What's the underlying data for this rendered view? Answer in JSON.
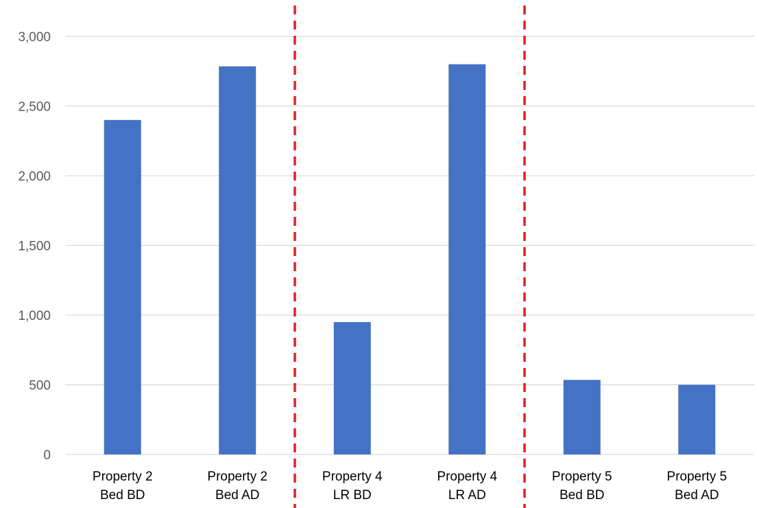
{
  "chart_data": {
    "type": "bar",
    "categories": [
      [
        "Property 2",
        "Bed BD"
      ],
      [
        "Property 2",
        "Bed AD"
      ],
      [
        "Property 4",
        "LR BD"
      ],
      [
        "Property 4",
        "LR AD"
      ],
      [
        "Property 5",
        "Bed BD"
      ],
      [
        "Property 5",
        "Bed AD"
      ]
    ],
    "values": [
      2400,
      2785,
      950,
      2800,
      535,
      500
    ],
    "ylim": [
      0,
      3000
    ],
    "yticks": [
      0,
      500,
      1000,
      1500,
      2000,
      2500,
      3000
    ],
    "ytick_labels": [
      "0",
      "500",
      "1,000",
      "1,500",
      "2,000",
      "2,500",
      "3,000"
    ],
    "grid": true,
    "group_separators_after_category": [
      2,
      4
    ],
    "colors": {
      "bar": "#4472C4",
      "grid": "#D9D9D9",
      "separator": "#E02020"
    }
  }
}
